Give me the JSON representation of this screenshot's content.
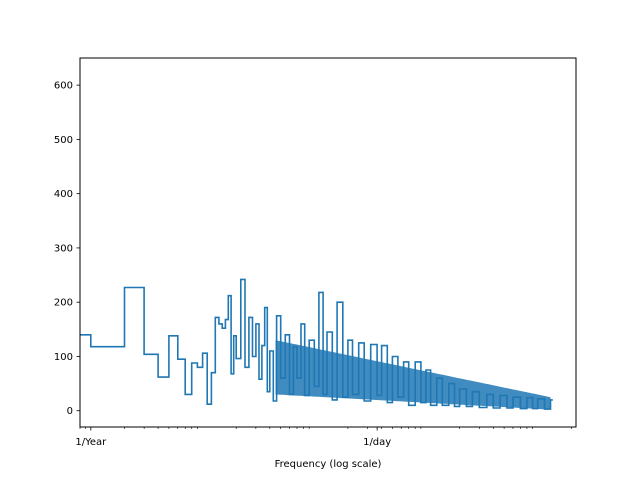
{
  "chart_data": {
    "type": "line",
    "drawstyle": "steps",
    "xscale": "log",
    "xlabel": "Frequency (log scale)",
    "ylabel": "",
    "title": "",
    "ylim": [
      -30,
      650
    ],
    "xlim": [
      0.8,
      22000
    ],
    "grid": false,
    "legend": "none",
    "line_color": "#1f77b4",
    "x_major_ticks": [
      {
        "value": 1,
        "label": "1/Year"
      },
      {
        "value": 365.2524,
        "label": "1/day"
      }
    ],
    "y_ticks": [
      0,
      100,
      200,
      300,
      400,
      500,
      600
    ],
    "series": [
      {
        "x": [
          0.8,
          1,
          2,
          3,
          4,
          5,
          6,
          7,
          8,
          9,
          10,
          11,
          12,
          13,
          14,
          15,
          16,
          17,
          18,
          19,
          20,
          22,
          24,
          26,
          28,
          30,
          32,
          34,
          36,
          38,
          40,
          43,
          46,
          50,
          55,
          60,
          65,
          70,
          76,
          82,
          90,
          100,
          110,
          120,
          130,
          145,
          160,
          180,
          200,
          220,
          250,
          280,
          320,
          365,
          400,
          450,
          500,
          560,
          630,
          700,
          800,
          900,
          1000,
          1100,
          1250,
          1400,
          1600,
          1800,
          2000,
          2300,
          2600,
          3000,
          3500,
          4000,
          4600,
          5300,
          6000,
          7000,
          8000,
          9000,
          10000,
          11500,
          13000
        ],
        "values": [
          140,
          118,
          227,
          104,
          62,
          138,
          95,
          30,
          88,
          80,
          106,
          12,
          70,
          172,
          160,
          152,
          168,
          212,
          68,
          138,
          96,
          242,
          80,
          172,
          100,
          160,
          58,
          120,
          190,
          35,
          110,
          18,
          175,
          60,
          140,
          30,
          118,
          60,
          160,
          28,
          130,
          45,
          218,
          30,
          145,
          20,
          200,
          25,
          130,
          30,
          125,
          18,
          122,
          28,
          120,
          15,
          100,
          25,
          90,
          10,
          90,
          15,
          75,
          10,
          60,
          10,
          50,
          8,
          40,
          8,
          35,
          6,
          30,
          5,
          28,
          5,
          25,
          4,
          24,
          4,
          22,
          3,
          20
        ]
      }
    ],
    "noise_band": {
      "x_start": 45,
      "x_end": 13000,
      "upper_start": 130,
      "upper_end": 25,
      "lower_start": 30,
      "lower_end": 2
    }
  }
}
